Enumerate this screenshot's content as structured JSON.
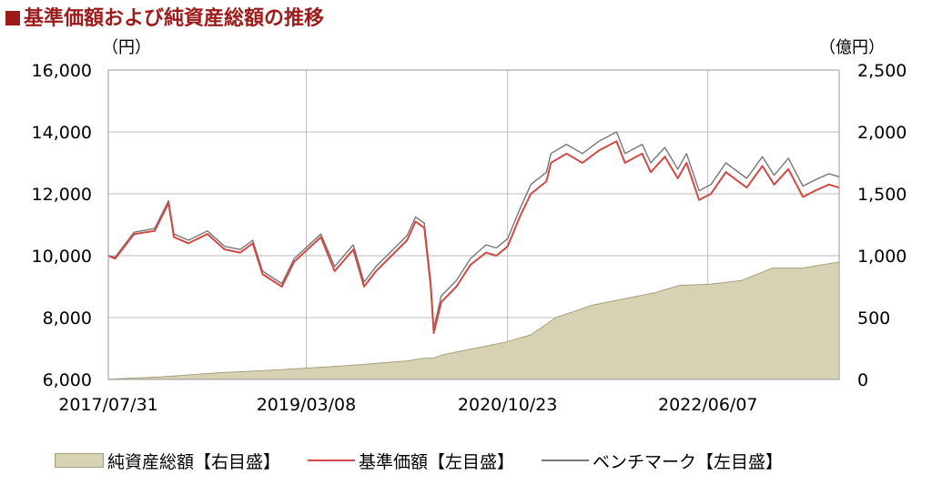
{
  "title": "基準価額および純資産総額の推移",
  "chart_data": {
    "type": "line",
    "y_left_unit": "（円）",
    "y_right_unit": "（億円）",
    "ylim_left": [
      6000,
      16000
    ],
    "ylim_right": [
      0,
      2500
    ],
    "y_left_ticks": [
      "6,000",
      "8,000",
      "10,000",
      "12,000",
      "14,000",
      "16,000"
    ],
    "y_right_ticks": [
      "0",
      "500",
      "1,000",
      "1,500",
      "2,000",
      "2,500"
    ],
    "y_left_tick_values": [
      6000,
      8000,
      10000,
      12000,
      14000,
      16000
    ],
    "x_ticks": [
      "2017/07/31",
      "2019/03/08",
      "2020/10/23",
      "2022/06/07"
    ],
    "xlim": [
      "2017/07/31",
      "2023/06/30"
    ],
    "grid": true,
    "legend_position": "bottom",
    "series": [
      {
        "name": "純資産総額【右目盛】",
        "axis": "right",
        "kind": "area",
        "color": "#d8d2b5",
        "points": [
          [
            "2017/07/31",
            2
          ],
          [
            "2017/12/31",
            20
          ],
          [
            "2018/06/30",
            55
          ],
          [
            "2018/12/31",
            80
          ],
          [
            "2019/06/30",
            110
          ],
          [
            "2019/12/31",
            150
          ],
          [
            "2020/02/15",
            170
          ],
          [
            "2020/03/20",
            175
          ],
          [
            "2020/04/15",
            200
          ],
          [
            "2020/07/15",
            250
          ],
          [
            "2020/10/15",
            300
          ],
          [
            "2020/12/31",
            360
          ],
          [
            "2021/03/15",
            500
          ],
          [
            "2021/06/30",
            600
          ],
          [
            "2021/09/30",
            650
          ],
          [
            "2021/12/31",
            700
          ],
          [
            "2022/03/15",
            760
          ],
          [
            "2022/06/15",
            770
          ],
          [
            "2022/09/15",
            800
          ],
          [
            "2022/12/15",
            900
          ],
          [
            "2023/03/15",
            900
          ],
          [
            "2023/06/30",
            950
          ]
        ]
      },
      {
        "name": "基準価額【左目盛】",
        "axis": "left",
        "kind": "line",
        "color": "#d04a45",
        "points": [
          [
            "2017/07/31",
            10000
          ],
          [
            "2017/08/20",
            9900
          ],
          [
            "2017/10/15",
            10700
          ],
          [
            "2017/12/15",
            10800
          ],
          [
            "2018/01/25",
            11700
          ],
          [
            "2018/02/10",
            10600
          ],
          [
            "2018/03/25",
            10400
          ],
          [
            "2018/05/20",
            10700
          ],
          [
            "2018/07/10",
            10200
          ],
          [
            "2018/08/25",
            10100
          ],
          [
            "2018/10/01",
            10400
          ],
          [
            "2018/10/30",
            9400
          ],
          [
            "2018/12/26",
            9000
          ],
          [
            "2019/01/31",
            9800
          ],
          [
            "2019/04/20",
            10600
          ],
          [
            "2019/05/31",
            9500
          ],
          [
            "2019/07/25",
            10200
          ],
          [
            "2019/08/26",
            9000
          ],
          [
            "2019/09/30",
            9500
          ],
          [
            "2019/11/15",
            10000
          ],
          [
            "2019/12/31",
            10500
          ],
          [
            "2020/01/25",
            11100
          ],
          [
            "2020/02/20",
            10900
          ],
          [
            "2020/03/10",
            9000
          ],
          [
            "2020/03/19",
            7500
          ],
          [
            "2020/04/10",
            8500
          ],
          [
            "2020/05/25",
            9000
          ],
          [
            "2020/07/05",
            9700
          ],
          [
            "2020/08/20",
            10100
          ],
          [
            "2020/09/20",
            10000
          ],
          [
            "2020/10/23",
            10300
          ],
          [
            "2020/11/30",
            11300
          ],
          [
            "2020/12/31",
            12000
          ],
          [
            "2021/02/15",
            12400
          ],
          [
            "2021/02/28",
            13000
          ],
          [
            "2021/04/15",
            13300
          ],
          [
            "2021/06/01",
            13000
          ],
          [
            "2021/07/20",
            13400
          ],
          [
            "2021/09/10",
            13700
          ],
          [
            "2021/10/05",
            13000
          ],
          [
            "2021/11/25",
            13300
          ],
          [
            "2021/12/20",
            12700
          ],
          [
            "2022/01/31",
            13200
          ],
          [
            "2022/03/10",
            12500
          ],
          [
            "2022/04/05",
            13000
          ],
          [
            "2022/05/12",
            11800
          ],
          [
            "2022/06/16",
            12000
          ],
          [
            "2022/07/30",
            12700
          ],
          [
            "2022/09/30",
            12200
          ],
          [
            "2022/11/15",
            12900
          ],
          [
            "2022/12/20",
            12300
          ],
          [
            "2023/01/31",
            12800
          ],
          [
            "2023/03/15",
            11900
          ],
          [
            "2023/04/20",
            12100
          ],
          [
            "2023/05/31",
            12300
          ],
          [
            "2023/06/30",
            12200
          ]
        ]
      },
      {
        "name": "ベンチマーク【左目盛】",
        "axis": "left",
        "kind": "line",
        "color": "#777777",
        "points": [
          [
            "2017/07/31",
            10000
          ],
          [
            "2017/08/20",
            9950
          ],
          [
            "2017/10/15",
            10760
          ],
          [
            "2017/12/15",
            10880
          ],
          [
            "2018/01/25",
            11780
          ],
          [
            "2018/02/10",
            10700
          ],
          [
            "2018/03/25",
            10500
          ],
          [
            "2018/05/20",
            10800
          ],
          [
            "2018/07/10",
            10300
          ],
          [
            "2018/08/25",
            10200
          ],
          [
            "2018/10/01",
            10500
          ],
          [
            "2018/10/30",
            9500
          ],
          [
            "2018/12/26",
            9100
          ],
          [
            "2019/01/31",
            9900
          ],
          [
            "2019/04/20",
            10700
          ],
          [
            "2019/05/31",
            9650
          ],
          [
            "2019/07/25",
            10350
          ],
          [
            "2019/08/26",
            9150
          ],
          [
            "2019/09/30",
            9650
          ],
          [
            "2019/11/15",
            10150
          ],
          [
            "2019/12/31",
            10650
          ],
          [
            "2020/01/25",
            11250
          ],
          [
            "2020/02/20",
            11050
          ],
          [
            "2020/03/10",
            9150
          ],
          [
            "2020/03/19",
            7650
          ],
          [
            "2020/04/10",
            8700
          ],
          [
            "2020/05/25",
            9200
          ],
          [
            "2020/07/05",
            9900
          ],
          [
            "2020/08/20",
            10350
          ],
          [
            "2020/09/20",
            10250
          ],
          [
            "2020/10/23",
            10550
          ],
          [
            "2020/11/30",
            11550
          ],
          [
            "2020/12/31",
            12300
          ],
          [
            "2021/02/15",
            12700
          ],
          [
            "2021/02/28",
            13300
          ],
          [
            "2021/04/15",
            13600
          ],
          [
            "2021/06/01",
            13300
          ],
          [
            "2021/07/20",
            13700
          ],
          [
            "2021/09/10",
            14000
          ],
          [
            "2021/10/05",
            13300
          ],
          [
            "2021/11/25",
            13600
          ],
          [
            "2021/12/20",
            13000
          ],
          [
            "2022/01/31",
            13500
          ],
          [
            "2022/03/10",
            12800
          ],
          [
            "2022/04/05",
            13300
          ],
          [
            "2022/05/12",
            12100
          ],
          [
            "2022/06/16",
            12300
          ],
          [
            "2022/07/30",
            13000
          ],
          [
            "2022/09/30",
            12500
          ],
          [
            "2022/11/15",
            13200
          ],
          [
            "2022/12/20",
            12600
          ],
          [
            "2023/01/31",
            13150
          ],
          [
            "2023/03/15",
            12250
          ],
          [
            "2023/04/20",
            12450
          ],
          [
            "2023/05/31",
            12650
          ],
          [
            "2023/06/30",
            12550
          ]
        ]
      }
    ]
  }
}
